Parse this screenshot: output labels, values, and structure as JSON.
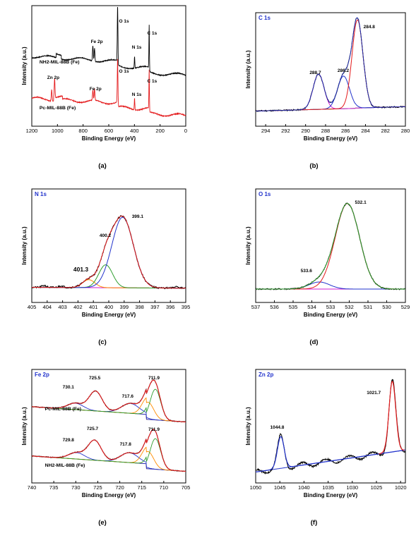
{
  "chart_data": [
    {
      "id": "a",
      "type": "line",
      "caption": "(a)",
      "xlabel": "Binding Energy (eV)",
      "ylabel": "Intensity (a.u.)",
      "xlim": [
        1200,
        0
      ],
      "x_ticks": [
        1200,
        1000,
        800,
        600,
        400,
        200,
        0
      ],
      "series": [
        {
          "name": "NH2-MIL-88B (Fe)",
          "color": "#000000"
        },
        {
          "name": "Pc-MIL-88B (Fe)",
          "color": "#e41a1c"
        }
      ],
      "annotations": [
        {
          "text": "O 1s",
          "x": 531
        },
        {
          "text": "Fe 2p",
          "x": 711
        },
        {
          "text": "N 1s",
          "x": 399
        },
        {
          "text": "C 1s",
          "x": 285
        },
        {
          "text": "O 1s",
          "x": 531
        },
        {
          "text": "Zn 2p",
          "x": 1022
        },
        {
          "text": "Fe 2p",
          "x": 711
        },
        {
          "text": "N 1s",
          "x": 399
        },
        {
          "text": "C 1s",
          "x": 285
        }
      ],
      "legend_labels": [
        "NH2-MIL-88B (Fe)",
        "Pc-MIL-88B (Fe)"
      ]
    },
    {
      "id": "b",
      "type": "line",
      "title": "C 1s",
      "caption": "(b)",
      "xlabel": "Binding Energy (eV)",
      "ylabel": "Intensity (a.u.)",
      "xlim": [
        295,
        280
      ],
      "x_ticks": [
        294,
        292,
        290,
        288,
        286,
        284,
        282,
        280
      ],
      "peaks": [
        284.8,
        286.2,
        288.7
      ],
      "peak_labels": [
        "284.8",
        "286.2",
        "288.7"
      ]
    },
    {
      "id": "c",
      "type": "line",
      "title": "N 1s",
      "caption": "(c)",
      "xlabel": "Binding Energy (eV)",
      "ylabel": "Intensity (a.u.)",
      "xlim": [
        405,
        395
      ],
      "x_ticks": [
        405,
        404,
        403,
        402,
        401,
        400,
        399,
        398,
        397,
        396,
        395
      ],
      "peaks": [
        399.1,
        400.2,
        401.3
      ],
      "peak_labels": [
        "399.1",
        "400.2",
        "401.3"
      ]
    },
    {
      "id": "d",
      "type": "line",
      "title": "O 1s",
      "caption": "(d)",
      "xlabel": "Binding Energy (eV)",
      "ylabel": "Intensity (a.u.)",
      "xlim": [
        537,
        529
      ],
      "x_ticks": [
        537,
        536,
        535,
        534,
        533,
        532,
        531,
        530,
        529
      ],
      "peaks": [
        532.1,
        533.6
      ],
      "peak_labels": [
        "532.1",
        "533.6"
      ]
    },
    {
      "id": "e",
      "type": "line",
      "title": "Fe 2p",
      "caption": "(e)",
      "xlabel": "Binding Energy (eV)",
      "ylabel": "Intensity (a.u.)",
      "xlim": [
        740,
        705
      ],
      "x_ticks": [
        740,
        735,
        730,
        725,
        720,
        715,
        710,
        705
      ],
      "series": [
        {
          "name": "Pc-MIL-88B (Fe)",
          "peaks": [
            730.1,
            725.5,
            717.6,
            711.9
          ]
        },
        {
          "name": "NH2-MIL-88B (Fe)",
          "peaks": [
            729.8,
            725.7,
            717.8,
            711.9
          ]
        }
      ],
      "peak_labels_top": [
        "730.1",
        "725.5",
        "717.6",
        "711.9"
      ],
      "peak_labels_bottom": [
        "729.8",
        "725.7",
        "717.8",
        "711.9"
      ],
      "legend_labels": [
        "Pc-MIL-88B (Fe)",
        "NH2-MIL-88B (Fe)"
      ]
    },
    {
      "id": "f",
      "type": "line",
      "title": "Zn 2p",
      "caption": "(f)",
      "xlabel": "Binding Energy (eV)",
      "ylabel": "Intensity (a.u.)",
      "xlim": [
        1050,
        1019
      ],
      "x_ticks": [
        1050,
        1045,
        1040,
        1035,
        1030,
        1025,
        1020
      ],
      "peaks": [
        1044.8,
        1021.7
      ],
      "peak_labels": [
        "1044.8",
        "1021.7"
      ]
    }
  ],
  "colors": {
    "raw": "#000000",
    "fit_red": "#e41a1c",
    "fit_blue": "#2233cc",
    "fit_green": "#2e9e2e",
    "fit_magenta": "#d21bd2",
    "fit_orange": "#ff8c00",
    "title_blue": "#2233cc"
  }
}
